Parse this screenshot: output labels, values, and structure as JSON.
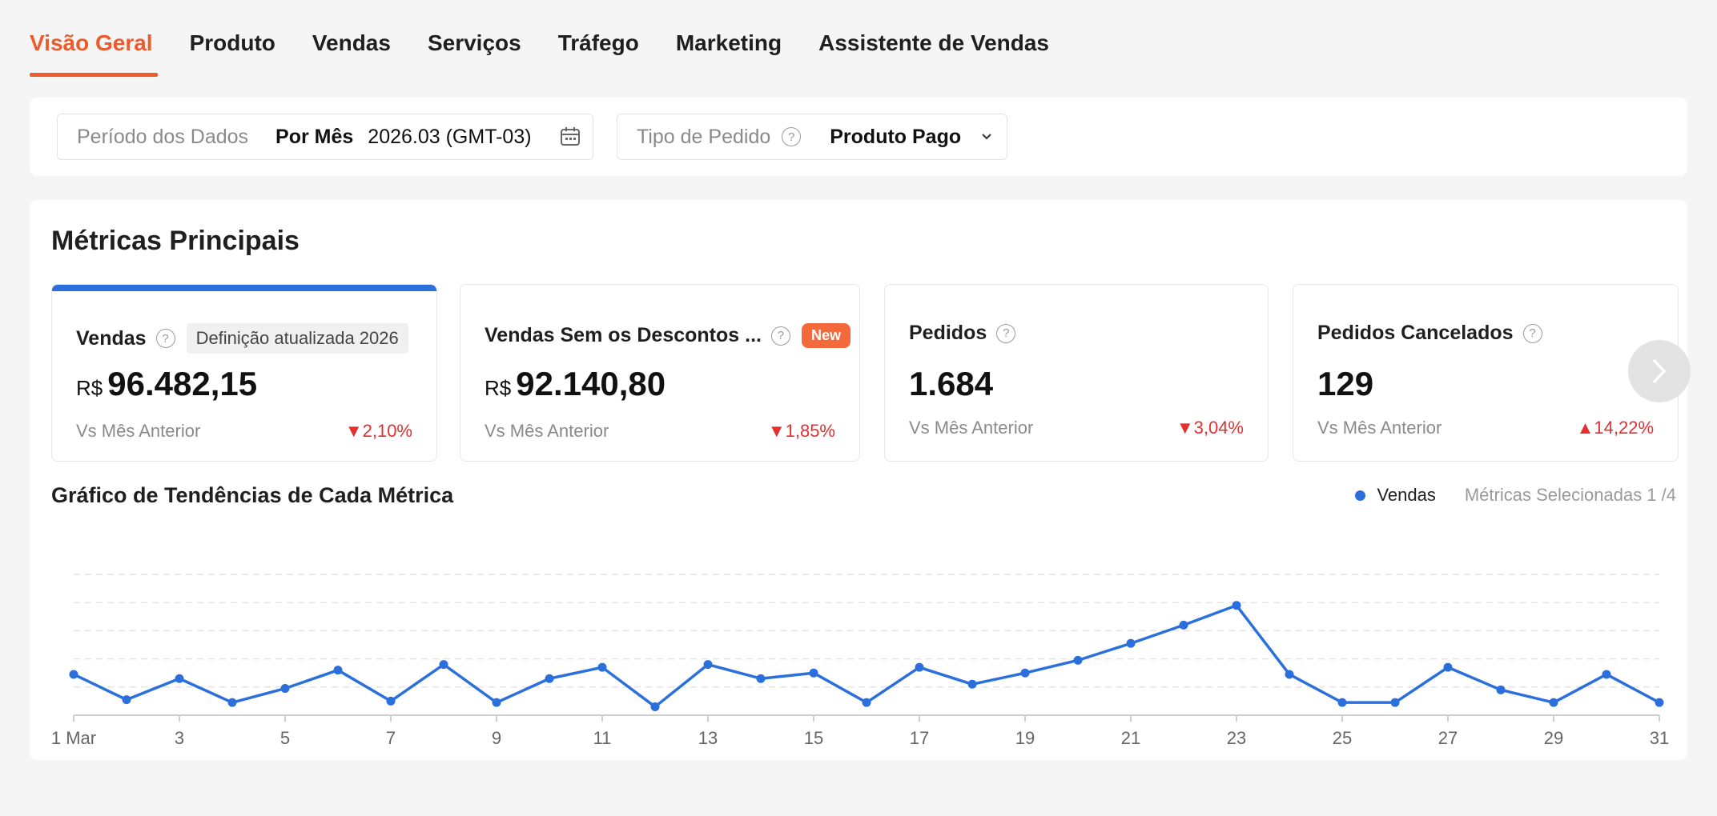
{
  "tabs": [
    {
      "label": "Visão Geral",
      "active": true
    },
    {
      "label": "Produto",
      "active": false
    },
    {
      "label": "Vendas",
      "active": false
    },
    {
      "label": "Serviços",
      "active": false
    },
    {
      "label": "Tráfego",
      "active": false
    },
    {
      "label": "Marketing",
      "active": false
    },
    {
      "label": "Assistente de Vendas",
      "active": false
    }
  ],
  "filters": {
    "period_label": "Período dos Dados",
    "period_mode": "Por Mês",
    "period_value": "2026.03 (GMT-03)",
    "order_type_label": "Tipo de Pedido",
    "order_type_value": "Produto Pago"
  },
  "main": {
    "title": "Métricas Principais",
    "metrics": [
      {
        "name": "Vendas",
        "tag": "Definição atualizada 2026",
        "currency": "R$",
        "value": "96.482,15",
        "compare_label": "Vs Mês Anterior",
        "change": "▼2,10%",
        "selected": true
      },
      {
        "name": "Vendas Sem os Descontos ...",
        "tag": "New",
        "currency": "R$",
        "value": "92.140,80",
        "compare_label": "Vs Mês Anterior",
        "change": "▼1,85%",
        "selected": false
      },
      {
        "name": "Pedidos",
        "value": "1.684",
        "compare_label": "Vs Mês Anterior",
        "change": "▼3,04%",
        "selected": false
      },
      {
        "name": "Pedidos Cancelados",
        "value": "129",
        "compare_label": "Vs Mês Anterior",
        "change": "▲14,22%",
        "selected": false
      }
    ],
    "chart_title": "Gráfico de Tendências de Cada Métrica",
    "legend_series": "Vendas",
    "selected_metrics": "Métricas Selecionadas 1 /4"
  },
  "colors": {
    "accent": "#ee5a2b",
    "series": "#2a6fdb",
    "negative": "#e23030",
    "new_badge": "#f3693b"
  },
  "chart_data": {
    "type": "line",
    "x": [
      1,
      2,
      3,
      4,
      5,
      6,
      7,
      8,
      9,
      10,
      11,
      12,
      13,
      14,
      15,
      16,
      17,
      18,
      19,
      20,
      21,
      22,
      23,
      24,
      25,
      26,
      27,
      28,
      29,
      30,
      31
    ],
    "x_tick_labels": [
      "1 Mar",
      "3",
      "5",
      "7",
      "9",
      "11",
      "13",
      "15",
      "17",
      "19",
      "21",
      "23",
      "25",
      "27",
      "29",
      "31"
    ],
    "series": [
      {
        "name": "Vendas",
        "values": [
          29,
          11,
          26,
          9,
          19,
          32,
          10,
          36,
          9,
          26,
          34,
          6,
          36,
          26,
          30,
          9,
          34,
          22,
          30,
          39,
          51,
          64,
          78,
          29,
          9,
          9,
          34,
          18,
          9,
          29,
          9
        ]
      }
    ],
    "ylim": [
      0,
      100
    ],
    "grid": true,
    "legend": "top-right"
  }
}
